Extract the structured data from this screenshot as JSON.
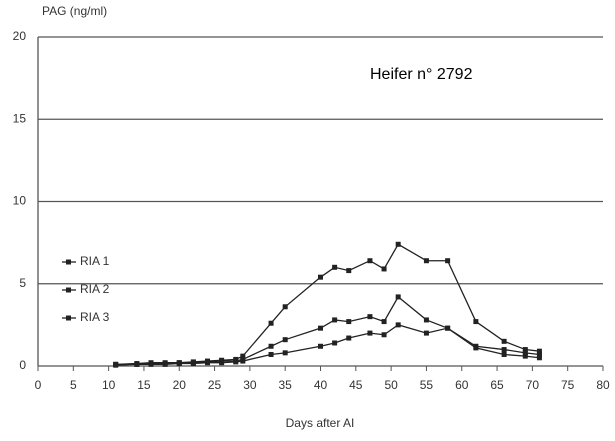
{
  "chart_data": {
    "type": "line",
    "y_label": "PAG (ng/ml)",
    "x_label": "Days after AI",
    "annotation": "Heifer n° 2792",
    "x": [
      11,
      14,
      16,
      18,
      20,
      22,
      24,
      26,
      28,
      29,
      33,
      35,
      40,
      42,
      44,
      47,
      49,
      51,
      55,
      58,
      62,
      66,
      69,
      71
    ],
    "series": [
      {
        "name": "RIA 1",
        "color": "#222222",
        "values": [
          0.1,
          0.15,
          0.2,
          0.2,
          0.2,
          0.25,
          0.3,
          0.35,
          0.4,
          0.6,
          2.6,
          3.6,
          5.4,
          6.0,
          5.8,
          6.4,
          5.9,
          7.4,
          6.4,
          6.4,
          2.7,
          1.5,
          1.0,
          0.9
        ]
      },
      {
        "name": "RIA 2",
        "color": "#222222",
        "values": [
          0.1,
          0.1,
          0.15,
          0.15,
          0.2,
          0.2,
          0.25,
          0.3,
          0.3,
          0.4,
          1.2,
          1.6,
          2.3,
          2.8,
          2.7,
          3.0,
          2.7,
          4.2,
          2.8,
          2.3,
          1.2,
          1.0,
          0.8,
          0.7
        ]
      },
      {
        "name": "RIA 3",
        "color": "#222222",
        "values": [
          0.05,
          0.1,
          0.1,
          0.1,
          0.15,
          0.15,
          0.2,
          0.2,
          0.25,
          0.3,
          0.7,
          0.8,
          1.2,
          1.4,
          1.7,
          2.0,
          1.9,
          2.5,
          2.0,
          2.3,
          1.1,
          0.7,
          0.6,
          0.5
        ]
      }
    ],
    "xlim": [
      0,
      80
    ],
    "xticks": [
      0,
      5,
      10,
      15,
      20,
      25,
      30,
      35,
      40,
      45,
      50,
      55,
      60,
      65,
      70,
      75,
      80
    ],
    "ylim": [
      0,
      20
    ],
    "yticks": [
      0,
      5,
      10,
      15,
      20
    ],
    "grid": true,
    "legend": "left"
  }
}
